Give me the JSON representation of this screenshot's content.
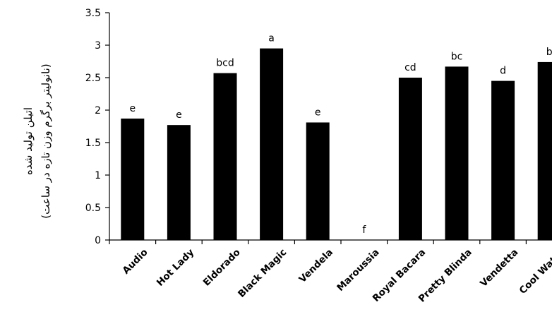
{
  "chart_data": {
    "type": "bar",
    "categories": [
      "Audio",
      "Hot Lady",
      "Eldorado",
      "Black Magic",
      "Vendela",
      "Maroussia",
      "Royal Bacara",
      "Pretty Blinda",
      "Vendetta",
      "Cool Water"
    ],
    "values": [
      1.87,
      1.77,
      2.57,
      2.95,
      1.81,
      0,
      2.5,
      2.67,
      2.45,
      2.74
    ],
    "data_labels": [
      "e",
      "e",
      "bcd",
      "a",
      "e",
      "f",
      "cd",
      "bc",
      "d",
      "b"
    ],
    "ylabel_line1": "اتیلن تولید شده",
    "ylabel_line2": "(نانولیتر برگرم وزن تازه در ساعت)",
    "xlabel": "",
    "ylim": [
      0,
      3.5
    ],
    "yticks": [
      "0",
      "0.5",
      "1",
      "1.5",
      "2",
      "2.5",
      "3",
      "3.5"
    ],
    "grid": false,
    "bar_color": "#000000"
  }
}
